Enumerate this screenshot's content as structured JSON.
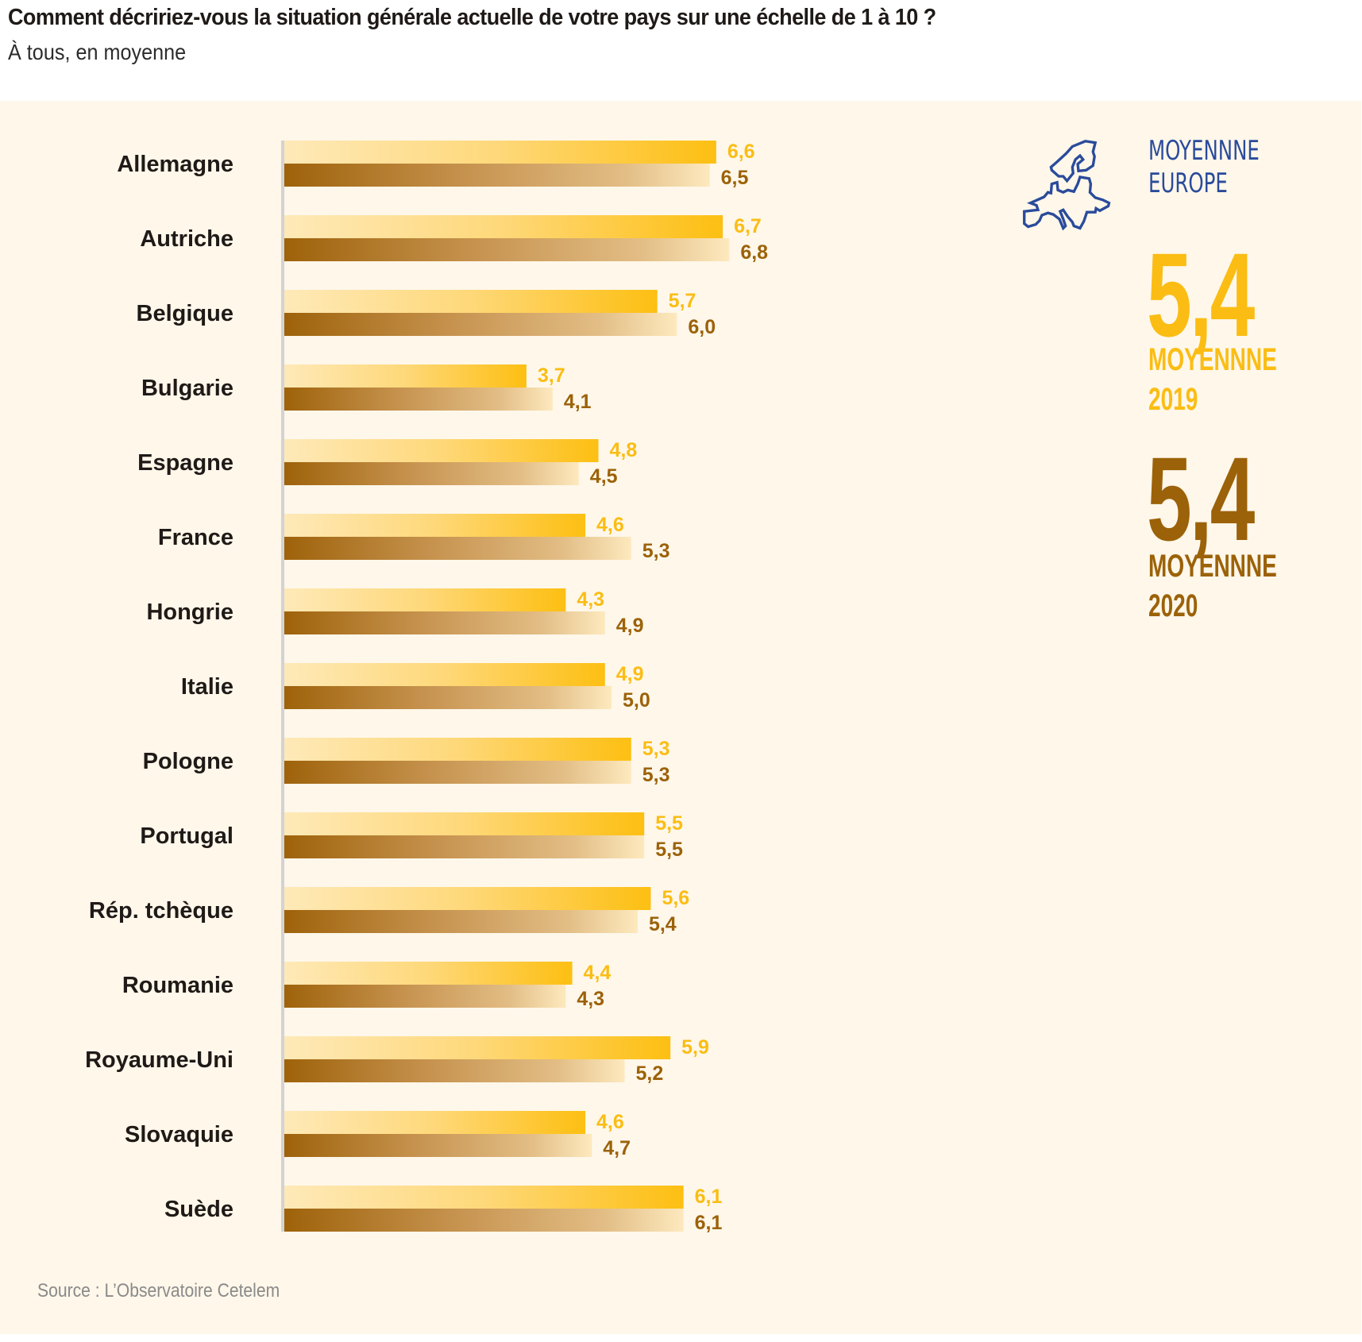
{
  "header": {
    "title": "Comment décririez-vous la situation générale actuelle de votre pays sur une échelle de 1 à 10 ?",
    "subtitle": "À tous, en moyenne"
  },
  "legend": {
    "icon": "europe-map-icon",
    "heading_line1": "MOYENNNE",
    "heading_line2": "EUROPE",
    "avg_2019": {
      "value": "5,4",
      "label_line1": "MOYENNNE",
      "label_line2": "2019"
    },
    "avg_2020": {
      "value": "5,4",
      "label_line1": "MOYENNNE",
      "label_line2": "2020"
    }
  },
  "footer": {
    "source": "Source : L’Observatoire Cetelem"
  },
  "colors": {
    "series_2019": "#fbbd14",
    "series_2019_light": "#fee9b8",
    "series_2020": "#9c6209",
    "series_2020_light": "#fde9be",
    "background_panel": "#fef7ea",
    "axis": "#d3d3d3",
    "accent_blue": "#2a4b9b"
  },
  "chart_data": {
    "type": "bar",
    "orientation": "horizontal",
    "title": "Comment décririez-vous la situation générale actuelle de votre pays sur une échelle de 1 à 10 ?",
    "subtitle": "À tous, en moyenne",
    "xlabel": "",
    "ylabel": "",
    "xlim": [
      0,
      10
    ],
    "grid": false,
    "decimal_separator": ",",
    "categories": [
      "Allemagne",
      "Autriche",
      "Belgique",
      "Bulgarie",
      "Espagne",
      "France",
      "Hongrie",
      "Italie",
      "Pologne",
      "Portugal",
      "Rép. tchèque",
      "Roumanie",
      "Royaume-Uni",
      "Slovaquie",
      "Suède"
    ],
    "series": [
      {
        "name": "2019",
        "values": [
          6.6,
          6.7,
          5.7,
          3.7,
          4.8,
          4.6,
          4.3,
          4.9,
          5.3,
          5.5,
          5.6,
          4.4,
          5.9,
          4.6,
          6.1
        ]
      },
      {
        "name": "2020",
        "values": [
          6.5,
          6.8,
          6.0,
          4.1,
          4.5,
          5.3,
          4.9,
          5.0,
          5.3,
          5.5,
          5.4,
          4.3,
          5.2,
          4.7,
          6.1
        ]
      }
    ],
    "averages": {
      "2019": 5.4,
      "2020": 5.4
    },
    "legend_position": "right",
    "source": "Source : L’Observatoire Cetelem"
  }
}
